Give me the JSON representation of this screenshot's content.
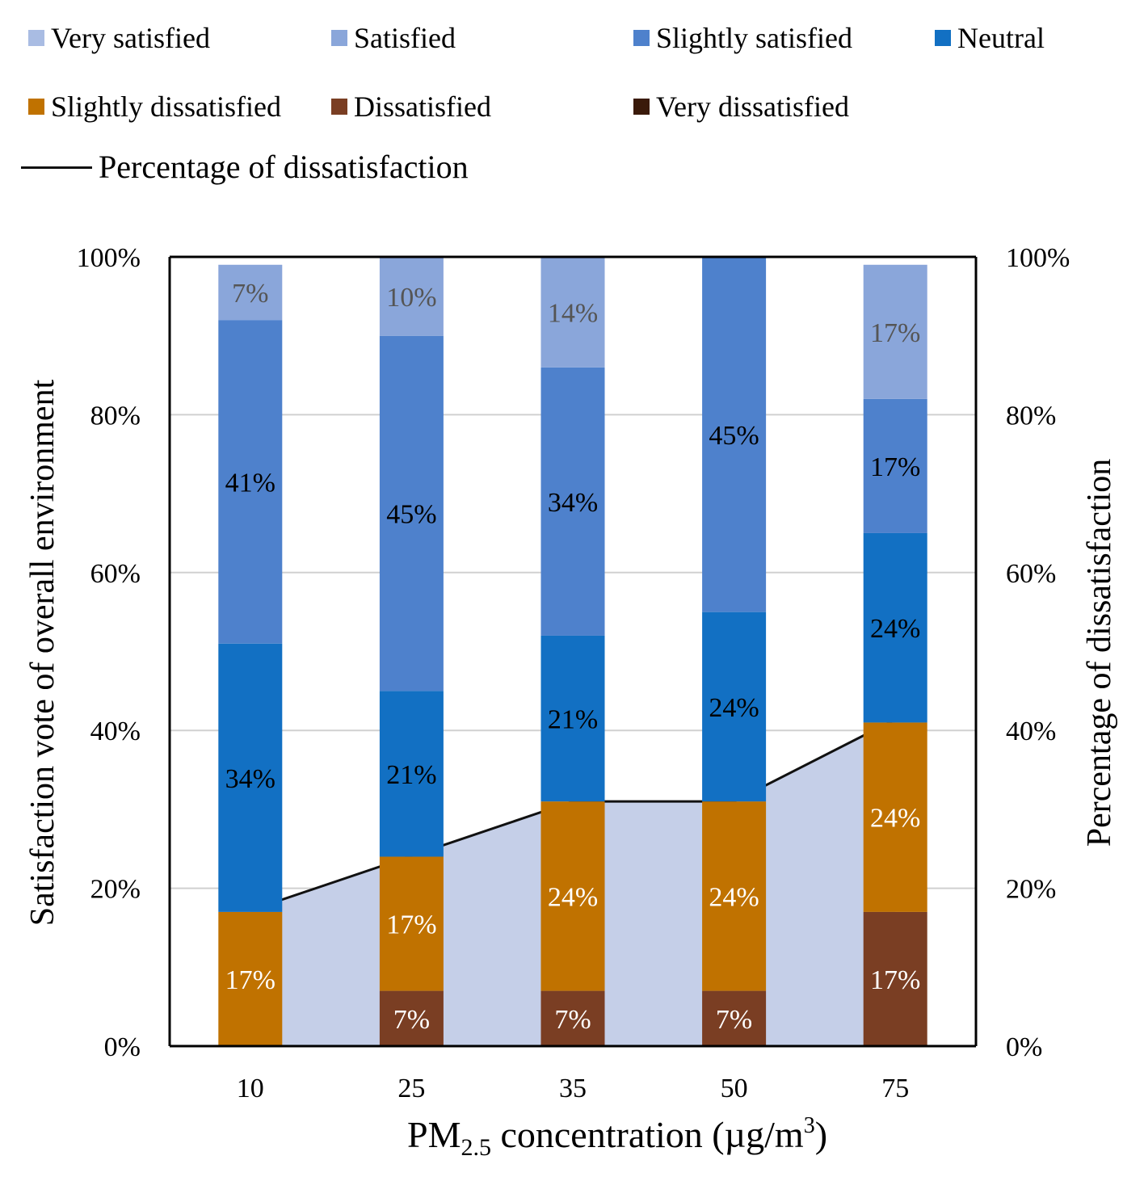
{
  "chart_data": {
    "type": "bar",
    "stacked": true,
    "categories": [
      "10",
      "25",
      "35",
      "50",
      "75"
    ],
    "series": [
      {
        "name": "Very satisfied",
        "color": "#a9bce3",
        "values": [
          0,
          0,
          0,
          0,
          0
        ]
      },
      {
        "name": "Satisfied",
        "color": "#8aa6da",
        "values": [
          7,
          10,
          14,
          0,
          17
        ]
      },
      {
        "name": "Slightly satisfied",
        "color": "#4e81cc",
        "values": [
          41,
          45,
          34,
          45,
          17
        ]
      },
      {
        "name": "Neutral",
        "color": "#1270c3",
        "values": [
          34,
          21,
          21,
          24,
          24
        ]
      },
      {
        "name": "Slightly dissatisfied",
        "color": "#c07200",
        "values": [
          17,
          17,
          24,
          24,
          24
        ]
      },
      {
        "name": "Dissatisfied",
        "color": "#7a3e23",
        "values": [
          0,
          7,
          7,
          7,
          17
        ]
      },
      {
        "name": "Very dissatisfied",
        "color": "#3a1a0a",
        "values": [
          0,
          0,
          0,
          0,
          0
        ]
      }
    ],
    "segment_labels": [
      [
        "",
        "7%",
        "41%",
        "34%",
        "17%",
        "",
        ""
      ],
      [
        "",
        "10%",
        "45%",
        "21%",
        "17%",
        "7%",
        ""
      ],
      [
        "",
        "14%",
        "34%",
        "21%",
        "24%",
        "7%",
        ""
      ],
      [
        "",
        "",
        "45%",
        "24%",
        "24%",
        "7%",
        ""
      ],
      [
        "",
        "17%",
        "17%",
        "24%",
        "24%",
        "17%",
        ""
      ]
    ],
    "segment_label_colors": [
      "#000",
      "#555555",
      "#000",
      "#000",
      "#ffffff",
      "#ffffff",
      "#ffffff"
    ],
    "line": {
      "name": "Percentage of dissatisfaction",
      "values": [
        17.2,
        24.1,
        31,
        31,
        41.4
      ],
      "fill_color": "#c5cfe8",
      "line_color": "#111111"
    },
    "ylim": [
      0,
      100
    ],
    "yticks": [
      0,
      20,
      40,
      60,
      80,
      100
    ],
    "ytick_labels": [
      "0%",
      "20%",
      "40%",
      "60%",
      "80%",
      "100%"
    ],
    "ylabel_left": "Satisfaction  vote of overall  environment",
    "ylabel_right": "Percentage  of dissatisfaction",
    "xlabel_parts": {
      "pre": "PM",
      "sub": "2.5",
      "mid": " concentration  (µg/m",
      "sup": "3",
      "post": ")"
    },
    "grid": true,
    "legend_position": "top"
  },
  "legend": {
    "items": [
      "Very satisfied",
      "Satisfied",
      "Slightly satisfied",
      "Neutral",
      "Slightly dissatisfied",
      "Dissatisfied",
      "Very dissatisfied"
    ],
    "colors": [
      "#a9bce3",
      "#8aa6da",
      "#4e81cc",
      "#1270c3",
      "#c07200",
      "#7a3e23",
      "#3a1a0a"
    ],
    "line_label": "Percentage of dissatisfaction"
  }
}
